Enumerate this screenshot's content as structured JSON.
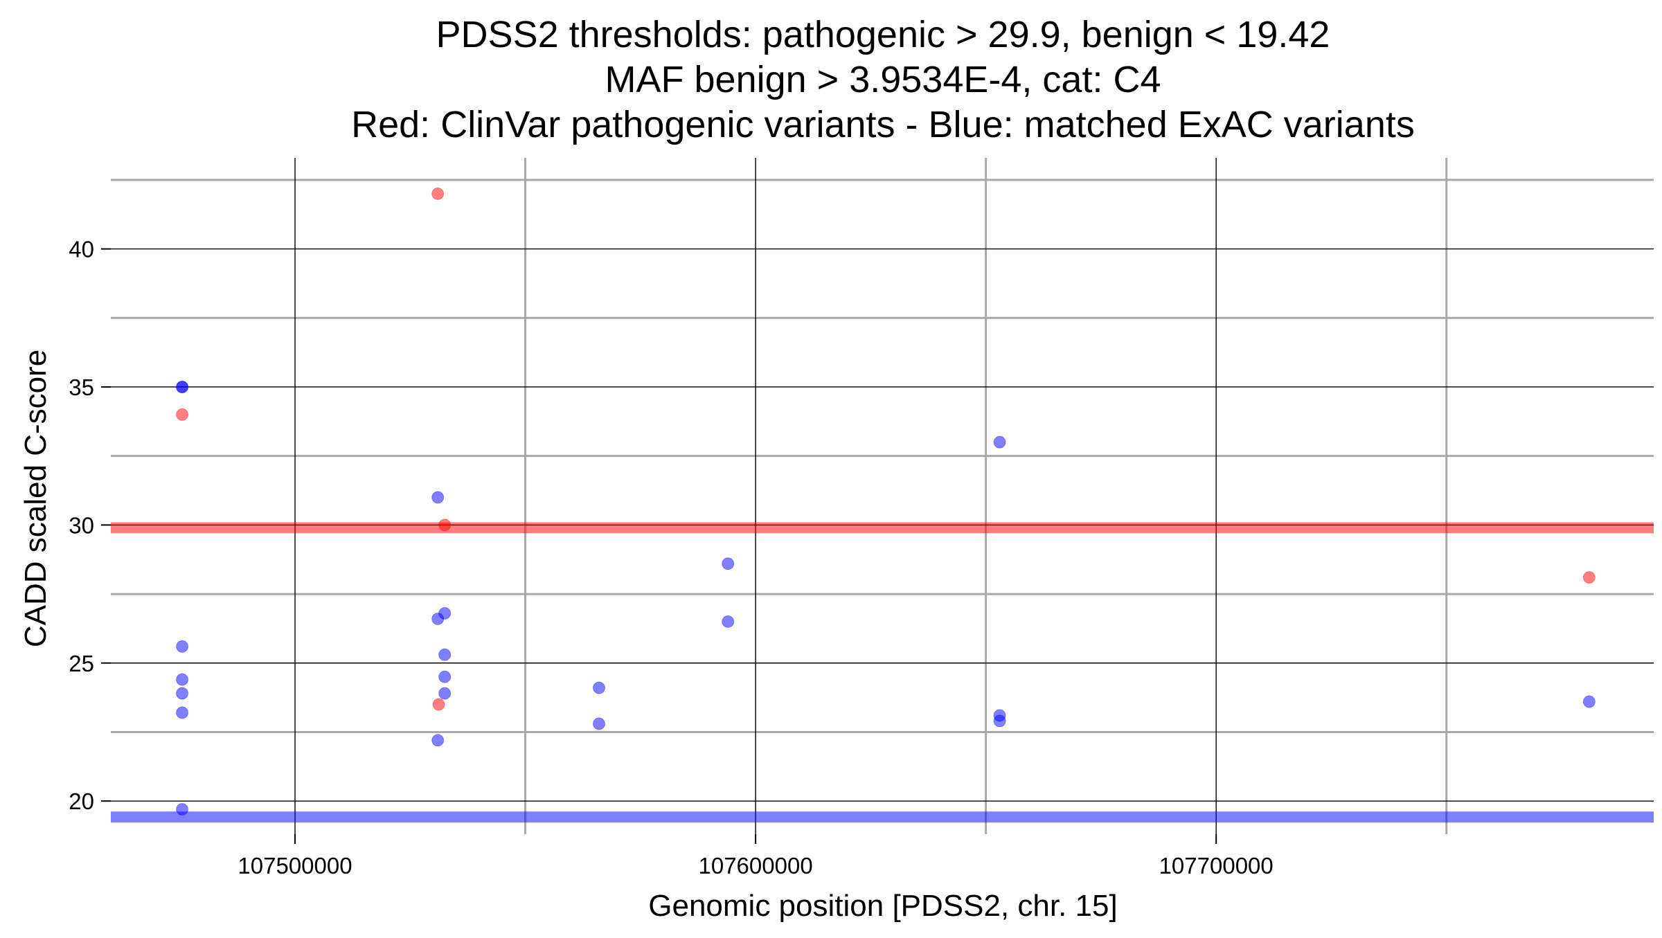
{
  "chart_data": {
    "type": "scatter",
    "title_lines": [
      "PDSS2 thresholds: pathogenic > 29.9, benign < 19.42",
      "MAF benign > 3.9534E-4, cat: C4",
      "Red: ClinVar pathogenic variants - Blue: matched ExAC variants"
    ],
    "xlabel": "Genomic position [PDSS2, chr. 15]",
    "ylabel": "CADD scaled C-score",
    "xlim": [
      107460000,
      107795000
    ],
    "ylim": [
      18.8,
      43.3
    ],
    "x_major_ticks": [
      107500000,
      107600000,
      107700000
    ],
    "x_tick_labels": [
      "107500000",
      "107600000",
      "107700000"
    ],
    "x_minor_grid": [
      107550000,
      107650000,
      107750000
    ],
    "y_major_ticks": [
      20,
      25,
      30,
      35,
      40
    ],
    "y_tick_labels": [
      "20",
      "25",
      "30",
      "35",
      "40"
    ],
    "y_minor_grid": [
      22.5,
      27.5,
      32.5,
      37.5,
      42.5
    ],
    "thresholds": [
      {
        "name": "pathogenic",
        "value": 29.9,
        "color": "#ff0000"
      },
      {
        "name": "benign",
        "value": 19.42,
        "color": "#0000ff"
      }
    ],
    "series": [
      {
        "name": "ClinVar pathogenic variants",
        "color": "#ff0000",
        "points": [
          {
            "x": 107475500,
            "y": 34.0
          },
          {
            "x": 107531000,
            "y": 42.0
          },
          {
            "x": 107532500,
            "y": 30.0
          },
          {
            "x": 107531200,
            "y": 23.5
          },
          {
            "x": 107781000,
            "y": 28.1
          }
        ]
      },
      {
        "name": "matched ExAC variants",
        "color": "#0000ff",
        "points": [
          {
            "x": 107475500,
            "y": 35.0
          },
          {
            "x": 107475500,
            "y": 35.0
          },
          {
            "x": 107475500,
            "y": 25.6
          },
          {
            "x": 107475500,
            "y": 24.4
          },
          {
            "x": 107475500,
            "y": 23.9
          },
          {
            "x": 107475500,
            "y": 23.2
          },
          {
            "x": 107475500,
            "y": 19.7
          },
          {
            "x": 107531000,
            "y": 31.0
          },
          {
            "x": 107531000,
            "y": 26.6
          },
          {
            "x": 107532500,
            "y": 26.8
          },
          {
            "x": 107532500,
            "y": 25.3
          },
          {
            "x": 107532500,
            "y": 24.5
          },
          {
            "x": 107532500,
            "y": 23.9
          },
          {
            "x": 107531000,
            "y": 22.2
          },
          {
            "x": 107566000,
            "y": 24.1
          },
          {
            "x": 107566000,
            "y": 22.8
          },
          {
            "x": 107594000,
            "y": 28.6
          },
          {
            "x": 107594000,
            "y": 26.5
          },
          {
            "x": 107653000,
            "y": 33.0
          },
          {
            "x": 107653000,
            "y": 23.1
          },
          {
            "x": 107653000,
            "y": 22.9
          },
          {
            "x": 107781000,
            "y": 23.6
          }
        ]
      }
    ]
  }
}
